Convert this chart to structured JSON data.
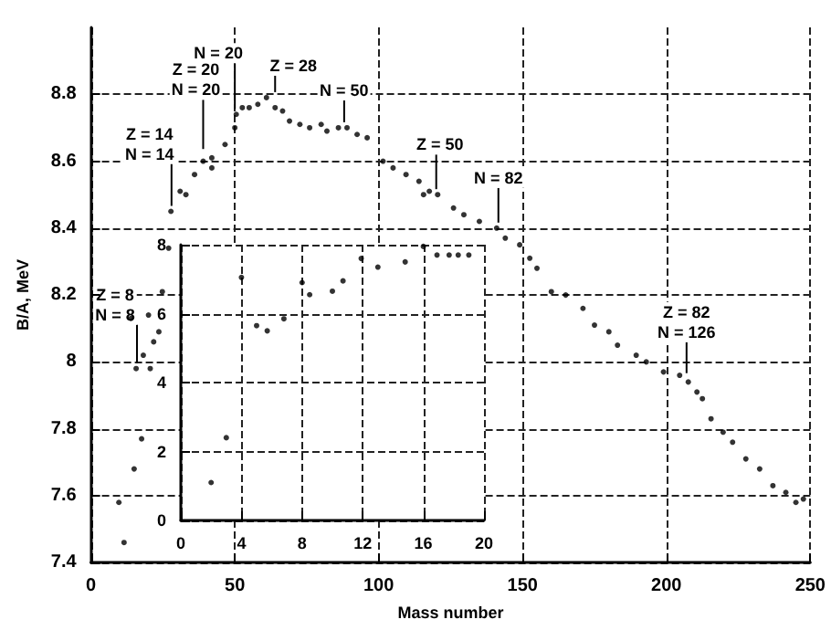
{
  "chart_data": [
    {
      "type": "scatter",
      "xlabel": "Mass number",
      "ylabel": "B/A, MeV",
      "xlim": [
        0,
        250
      ],
      "ylim": [
        7.4,
        9.0
      ],
      "xticks": [
        0,
        50,
        100,
        150,
        200,
        250
      ],
      "yticks": [
        7.4,
        7.6,
        7.8,
        8.0,
        8.2,
        8.4,
        8.6,
        8.8
      ],
      "grid": true,
      "marker": "circle",
      "color": "#000000",
      "x": [
        9.7,
        11.5,
        13.9,
        15,
        15.7,
        17.6,
        18.2,
        20,
        20.6,
        21.8,
        23.6,
        24.8,
        27,
        27.8,
        31,
        33,
        36,
        39,
        42,
        42,
        46.6,
        50,
        50.5,
        52.6,
        55,
        58,
        61,
        64,
        66.6,
        69,
        72.6,
        76,
        80,
        82,
        86,
        89,
        92.5,
        96,
        101.5,
        105,
        109.5,
        114,
        115.6,
        117.6,
        120.5,
        126,
        129.6,
        135,
        141,
        144,
        149,
        152.5,
        155,
        160,
        165,
        171,
        175,
        180,
        183,
        189.5,
        193,
        199,
        204.6,
        207.6,
        210.6,
        212.5,
        215.5,
        219.7,
        223,
        227.6,
        232.4,
        237,
        241.5,
        245,
        247.6
      ],
      "values": [
        7.58,
        7.46,
        8.13,
        7.68,
        7.98,
        7.77,
        8.02,
        8.14,
        7.98,
        8.06,
        8.09,
        8.21,
        8.34,
        8.45,
        8.51,
        8.5,
        8.56,
        8.6,
        8.61,
        8.58,
        8.65,
        8.7,
        8.74,
        8.76,
        8.76,
        8.77,
        8.79,
        8.76,
        8.75,
        8.72,
        8.71,
        8.7,
        8.71,
        8.69,
        8.7,
        8.7,
        8.68,
        8.67,
        8.6,
        8.58,
        8.56,
        8.54,
        8.5,
        8.51,
        8.5,
        8.46,
        8.44,
        8.42,
        8.4,
        8.37,
        8.35,
        8.31,
        8.28,
        8.21,
        8.2,
        8.16,
        8.11,
        8.09,
        8.05,
        8.02,
        8.0,
        7.97,
        7.96,
        7.94,
        7.91,
        7.89,
        7.83,
        7.79,
        7.76,
        7.71,
        7.68,
        7.63,
        7.61,
        7.58,
        7.59
      ],
      "annotations": [
        {
          "text": "Z = 8\nN = 8",
          "x": 16,
          "y": 7.98
        },
        {
          "text": "Z = 14\nN = 14",
          "x": 28,
          "y": 8.45
        },
        {
          "text": "Z = 20\nN = 20",
          "x": 39,
          "y": 8.62
        },
        {
          "text": "N = 20",
          "x": 50,
          "y": 8.74
        },
        {
          "text": "Z = 28",
          "x": 64,
          "y": 8.79
        },
        {
          "text": "N = 50",
          "x": 88,
          "y": 8.7
        },
        {
          "text": "Z = 50",
          "x": 120,
          "y": 8.5
        },
        {
          "text": "N = 82",
          "x": 141.6,
          "y": 8.4
        },
        {
          "text": "Z = 82\nN = 126",
          "x": 207,
          "y": 7.95
        }
      ]
    },
    {
      "type": "scatter",
      "xlim": [
        0,
        20
      ],
      "ylim": [
        0,
        8
      ],
      "xticks": [
        0,
        4,
        8,
        12,
        16,
        20
      ],
      "yticks": [
        0,
        2,
        4,
        6,
        8
      ],
      "grid": true,
      "marker": "circle",
      "color": "#000000",
      "x": [
        2,
        3,
        4,
        5,
        5.7,
        6.8,
        8,
        8.5,
        10,
        10.7,
        11.9,
        13,
        14.8,
        16,
        16.9,
        17.7,
        18.3,
        19
      ],
      "values": [
        1.1,
        2.4,
        7.05,
        5.65,
        5.5,
        5.85,
        6.9,
        6.55,
        6.65,
        6.95,
        7.6,
        7.35,
        7.5,
        7.95,
        7.7,
        7.7,
        7.7,
        7.7
      ]
    }
  ]
}
